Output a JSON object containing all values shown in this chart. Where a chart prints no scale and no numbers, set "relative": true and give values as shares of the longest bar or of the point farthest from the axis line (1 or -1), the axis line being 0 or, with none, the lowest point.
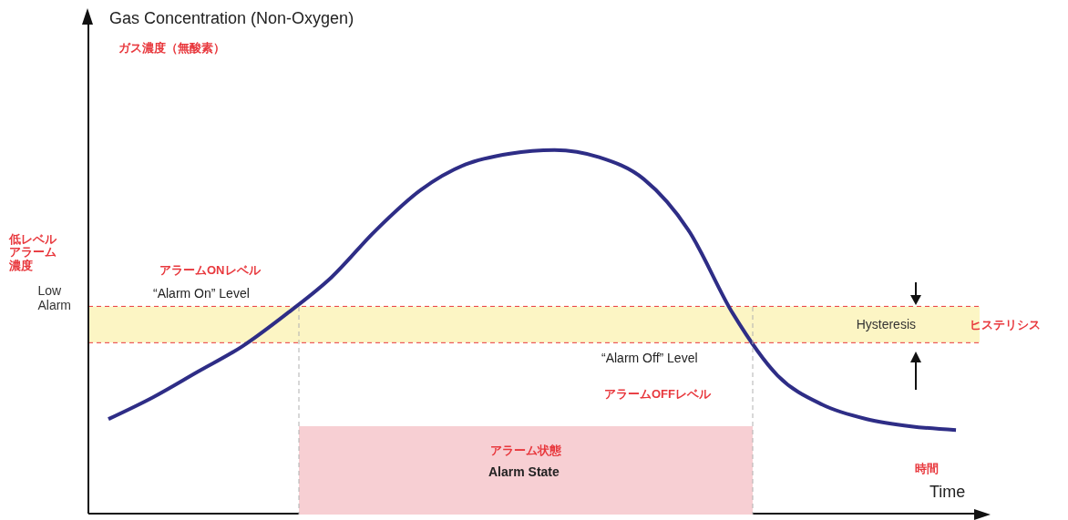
{
  "chart_data": {
    "type": "line",
    "relative": true,
    "title": "Gas Concentration (Non-Oxygen)",
    "xlabel": "Time",
    "categories": [
      null,
      null,
      null,
      null,
      null,
      null,
      null,
      null,
      null,
      null,
      null,
      null,
      null,
      null,
      null,
      null,
      null,
      null,
      null,
      null
    ],
    "series": [
      {
        "color": "#2e2d86",
        "values": [
          0.26,
          0.32,
          0.39,
          0.46,
          0.55,
          0.65,
          0.78,
          0.89,
          0.96,
          0.99,
          1,
          0.98,
          0.92,
          0.78,
          0.55,
          0.38,
          0.3,
          0.26,
          0.24,
          0.23
        ]
      }
    ],
    "marker": "none",
    "line_style": "solid",
    "grid": false,
    "legend": false,
    "bands": [
      {
        "axis": "y",
        "from": 0.47,
        "to": 0.57,
        "label": "Hysteresis",
        "color": "#fcf5c4"
      }
    ],
    "ref_lines": [
      {
        "axis": "y",
        "value": 0.57,
        "label": "Low\nAlarm",
        "color": "#e8383d",
        "line_style": "dashed"
      },
      {
        "axis": "y",
        "value": 0.47,
        "color": "#e8383d",
        "line_style": "dashed"
      }
    ],
    "annotations": [
      "ガス濃度（無酸素）",
      "低レベルアラーム濃度",
      "アラームONレベル",
      "“Alarm On” Level",
      "“Alarm Off” Level",
      "アラームOFFレベル",
      "ヒステリシス",
      "アラーム状態",
      "Alarm State",
      "時間"
    ]
  }
}
